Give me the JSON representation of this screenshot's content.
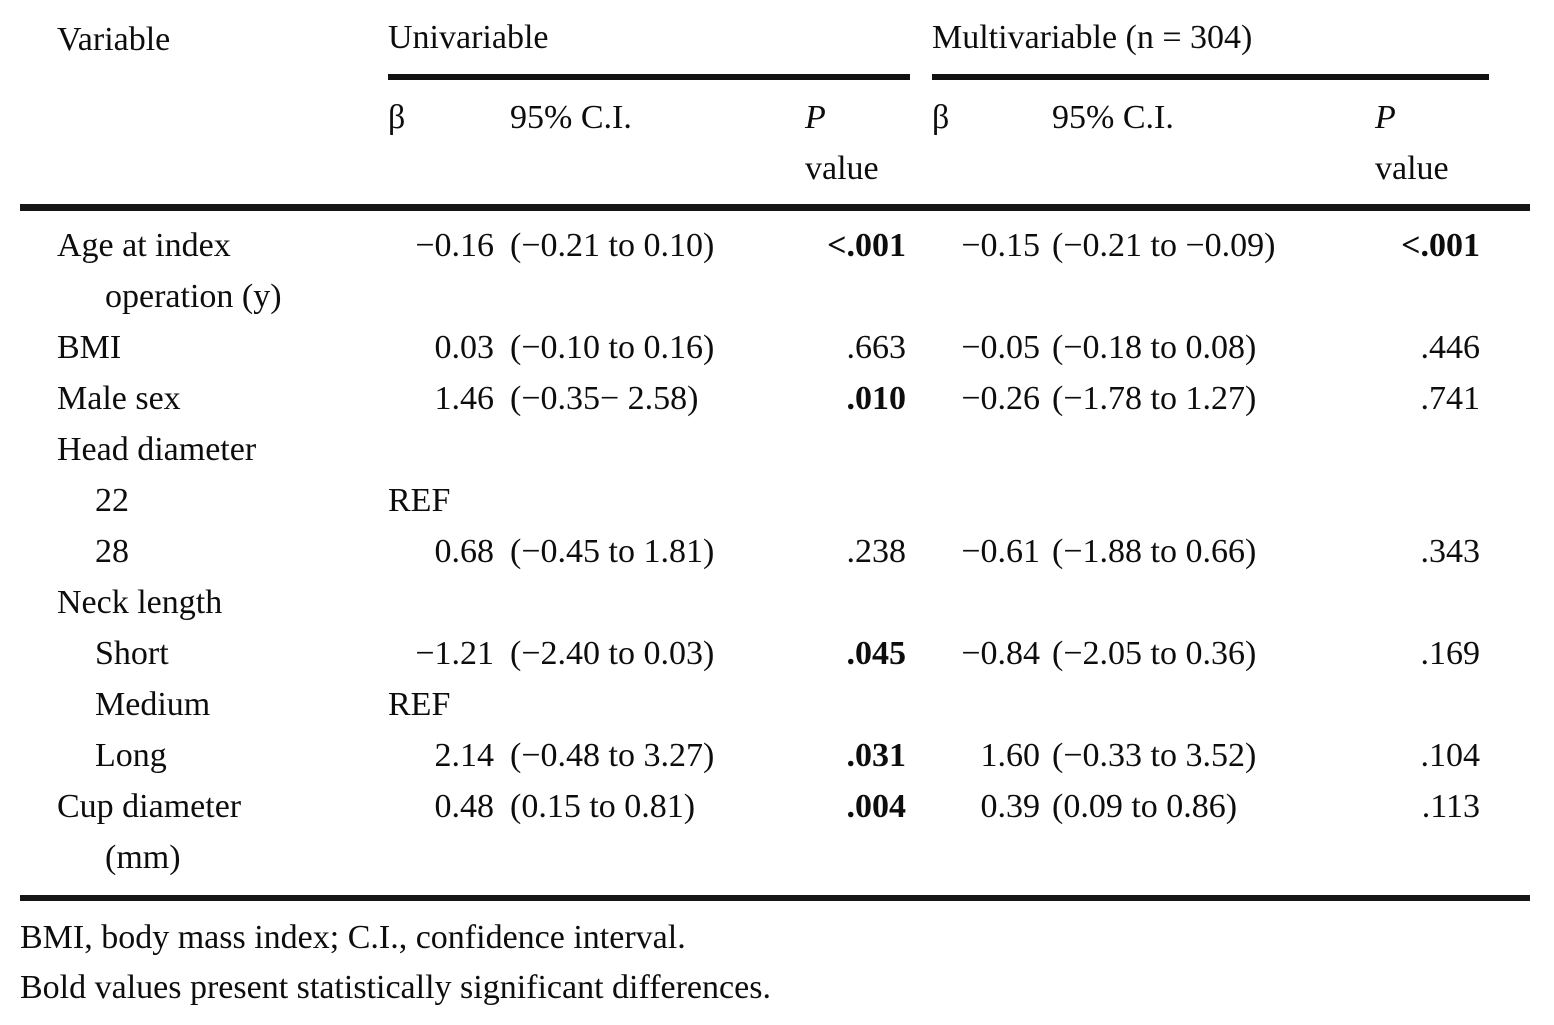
{
  "header": {
    "variable": "Variable",
    "group1": "Univariable",
    "group2": "Multivariable (n = 304)",
    "beta": "β",
    "ci": "95% C.I.",
    "p_top": "P",
    "p_bottom": "value"
  },
  "rows": [
    {
      "lines": [
        "Age at index",
        "operation (y)"
      ],
      "indent": false,
      "u": {
        "beta": "−0.16",
        "ci": "(−0.21 to 0.10)",
        "p": "<.001",
        "p_bold": true
      },
      "m": {
        "beta": "−0.15",
        "ci": "(−0.21 to −0.09)",
        "p": "<.001",
        "p_bold": true
      }
    },
    {
      "lines": [
        "BMI"
      ],
      "indent": false,
      "u": {
        "beta": "0.03",
        "ci": "(−0.10 to 0.16)",
        "p": ".663",
        "p_bold": false
      },
      "m": {
        "beta": "−0.05",
        "ci": "(−0.18 to 0.08)",
        "p": ".446",
        "p_bold": false
      }
    },
    {
      "lines": [
        "Male sex"
      ],
      "indent": false,
      "u": {
        "beta": "1.46",
        "ci": "(−0.35− 2.58)",
        "p": ".010",
        "p_bold": true
      },
      "m": {
        "beta": "−0.26",
        "ci": "(−1.78 to 1.27)",
        "p": ".741",
        "p_bold": false
      }
    },
    {
      "lines": [
        "Head diameter"
      ],
      "indent": false,
      "u": null,
      "m": null
    },
    {
      "lines": [
        "22"
      ],
      "indent": true,
      "u": {
        "beta": "REF",
        "ci": "",
        "p": "",
        "p_bold": false
      },
      "m": null
    },
    {
      "lines": [
        "28"
      ],
      "indent": true,
      "u": {
        "beta": "0.68",
        "ci": "(−0.45 to 1.81)",
        "p": ".238",
        "p_bold": false
      },
      "m": {
        "beta": "−0.61",
        "ci": "(−1.88 to 0.66)",
        "p": ".343",
        "p_bold": false
      }
    },
    {
      "lines": [
        "Neck length"
      ],
      "indent": false,
      "u": null,
      "m": null
    },
    {
      "lines": [
        "Short"
      ],
      "indent": true,
      "u": {
        "beta": "−1.21",
        "ci": "(−2.40 to 0.03)",
        "p": ".045",
        "p_bold": true
      },
      "m": {
        "beta": "−0.84",
        "ci": "(−2.05 to 0.36)",
        "p": ".169",
        "p_bold": false
      }
    },
    {
      "lines": [
        "Medium"
      ],
      "indent": true,
      "u": {
        "beta": "REF",
        "ci": "",
        "p": "",
        "p_bold": false
      },
      "m": null
    },
    {
      "lines": [
        "Long"
      ],
      "indent": true,
      "u": {
        "beta": "2.14",
        "ci": "(−0.48 to 3.27)",
        "p": ".031",
        "p_bold": true
      },
      "m": {
        "beta": "1.60",
        "ci": "(−0.33 to 3.52)",
        "p": ".104",
        "p_bold": false
      }
    },
    {
      "lines": [
        "Cup diameter",
        "(mm)"
      ],
      "indent": false,
      "u": {
        "beta": "0.48",
        "ci": "(0.15 to 0.81)",
        "p": ".004",
        "p_bold": true
      },
      "m": {
        "beta": "0.39",
        "ci": "(0.09 to 0.86)",
        "p": ".113",
        "p_bold": false
      }
    }
  ],
  "footnotes": [
    "BMI, body mass index; C.I., confidence interval.",
    "Bold values present statistically significant differences."
  ],
  "colors": {
    "text": "#0d0d0d",
    "rule": "#161616",
    "background": "#ffffff"
  }
}
